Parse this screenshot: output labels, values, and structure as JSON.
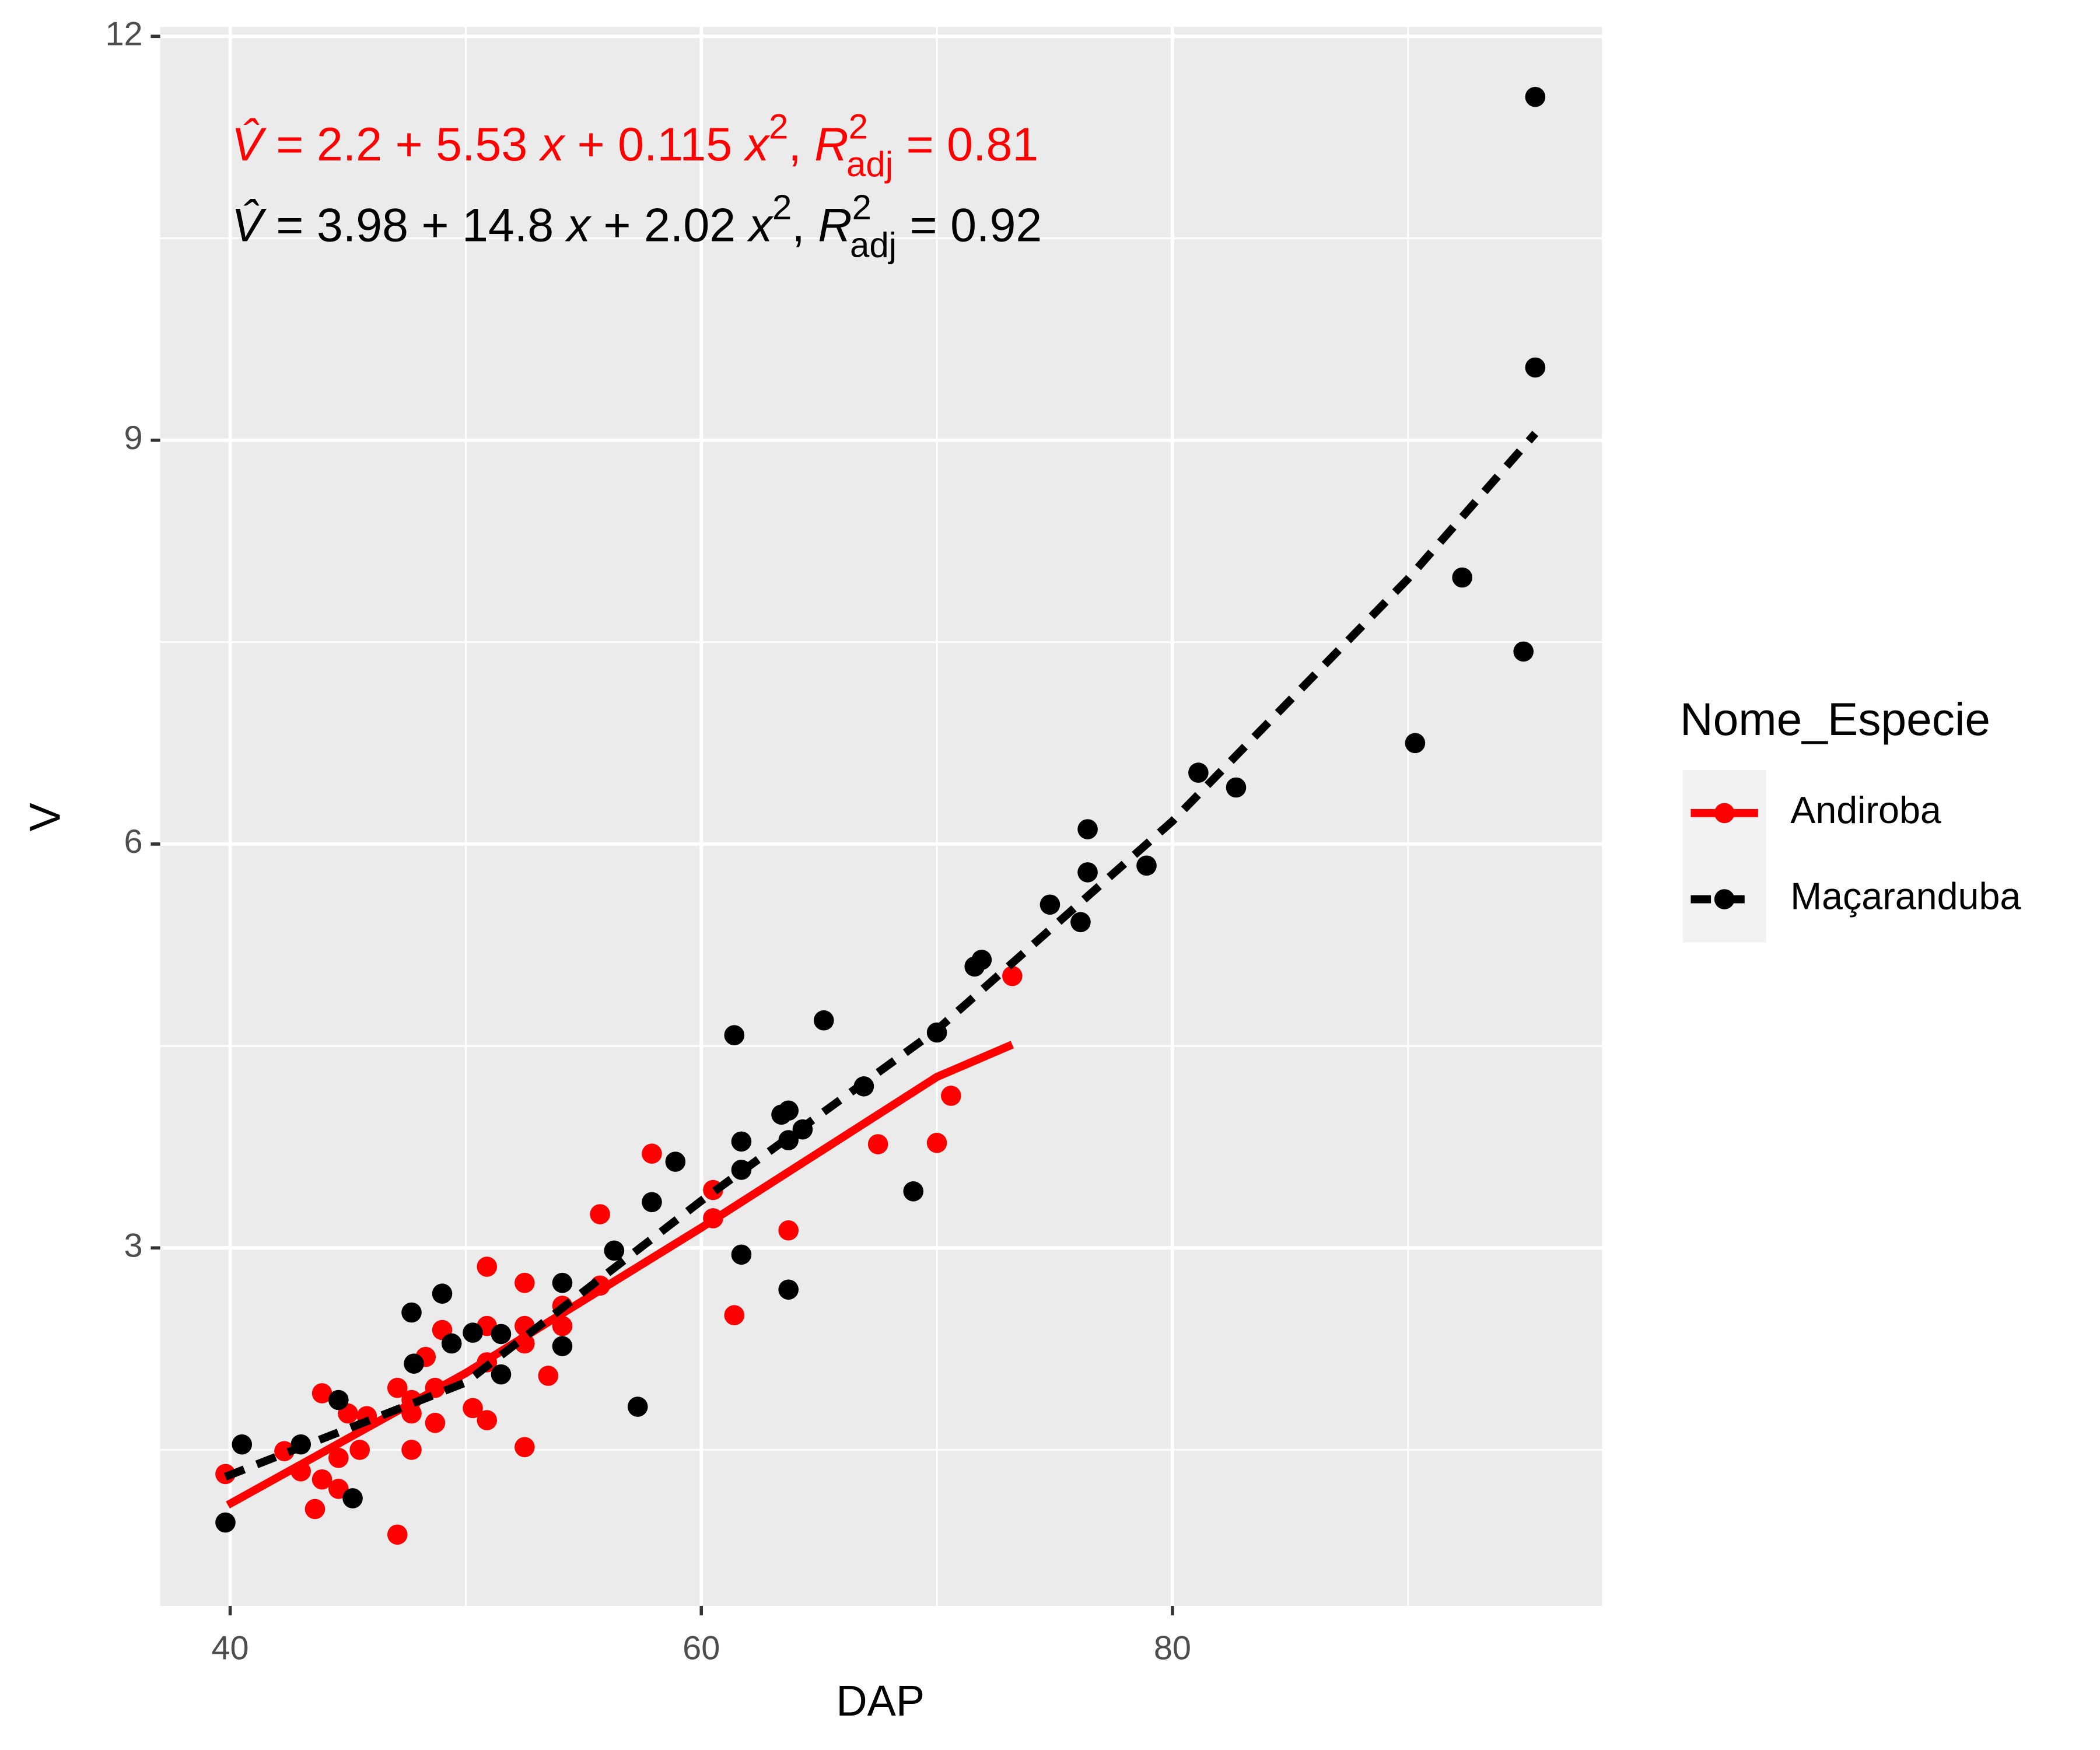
{
  "chart_data": {
    "type": "scatter",
    "xlabel": "DAP",
    "ylabel": "V",
    "xlim": [
      37.03,
      98.23
    ],
    "ylim": [
      0.34,
      12.07
    ],
    "xticks": [
      40,
      60,
      80
    ],
    "yticks": [
      3,
      6,
      9,
      12
    ],
    "x_minor_grid": [
      50,
      70,
      90
    ],
    "y_minor_grid": [
      1.5,
      4.5,
      7.5,
      10.5
    ],
    "grid": true,
    "legend": {
      "title": "Nome_Especie",
      "position": "right"
    },
    "series": [
      {
        "name": "Andiroba",
        "color": "#ff0000",
        "line_style": "solid",
        "x": [
          39.8,
          42.3,
          43.0,
          43.6,
          43.9,
          43.9,
          44.6,
          44.6,
          45.0,
          45.5,
          45.8,
          47.1,
          47.1,
          47.7,
          47.7,
          47.7,
          48.3,
          48.7,
          48.7,
          49.0,
          50.3,
          50.9,
          50.9,
          50.9,
          50.9,
          52.5,
          52.5,
          52.5,
          52.5,
          53.5,
          54.1,
          54.1,
          55.7,
          55.7,
          57.9,
          60.5,
          60.5,
          61.4,
          63.7,
          67.5,
          70.0,
          70.6,
          73.2
        ],
        "values": [
          1.32,
          1.49,
          1.34,
          1.06,
          1.92,
          1.28,
          1.21,
          1.44,
          1.77,
          1.5,
          1.75,
          0.87,
          1.96,
          1.5,
          1.77,
          1.87,
          2.19,
          1.7,
          1.96,
          2.39,
          1.81,
          2.86,
          2.42,
          2.15,
          1.72,
          2.74,
          2.42,
          2.29,
          1.52,
          2.05,
          2.42,
          2.57,
          3.25,
          2.72,
          3.7,
          3.43,
          3.22,
          2.5,
          3.13,
          3.77,
          3.78,
          4.13,
          5.02
        ],
        "fit_x": [
          39.9,
          50,
          60,
          70,
          73.2
        ],
        "fit_values": [
          1.09,
          2.07,
          3.15,
          4.27,
          4.51
        ]
      },
      {
        "name": "Maçaranduba",
        "color": "#000000",
        "line_style": "dashed",
        "x": [
          39.8,
          40.5,
          43.0,
          44.6,
          45.2,
          47.7,
          47.8,
          49.0,
          49.4,
          50.3,
          51.5,
          51.5,
          54.1,
          54.1,
          56.3,
          57.3,
          57.9,
          58.9,
          61.4,
          61.7,
          61.7,
          61.7,
          63.4,
          63.7,
          63.7,
          63.7,
          64.3,
          65.2,
          66.9,
          69.0,
          70.0,
          71.6,
          71.9,
          74.8,
          76.1,
          76.4,
          76.4,
          78.9,
          81.1,
          82.7,
          90.3,
          92.3,
          94.9,
          95.4,
          95.4
        ],
        "values": [
          0.96,
          1.54,
          1.54,
          1.87,
          1.14,
          2.52,
          2.14,
          2.66,
          2.29,
          2.37,
          2.36,
          2.06,
          2.74,
          2.27,
          2.98,
          1.82,
          3.34,
          3.64,
          4.58,
          3.79,
          3.58,
          2.95,
          3.99,
          4.02,
          3.8,
          2.69,
          3.88,
          4.69,
          4.2,
          3.42,
          4.6,
          5.09,
          5.14,
          5.55,
          5.42,
          6.11,
          5.79,
          5.84,
          6.53,
          6.42,
          6.75,
          7.98,
          7.43,
          9.54,
          11.55
        ],
        "fit_x": [
          39.8,
          50,
          60,
          70,
          80,
          90,
          95.4
        ],
        "fit_values": [
          1.3,
          2.0,
          3.35,
          4.62,
          6.17,
          7.97,
          9.05
        ]
      }
    ],
    "annotations": [
      {
        "color": "#ff0000",
        "parts": [
          {
            "text": "V̂",
            "style": "italic"
          },
          {
            "text": " = 2.2 + 5.53 "
          },
          {
            "text": "x",
            "style": "italic"
          },
          {
            "text": " + 0.115 "
          },
          {
            "text": "x",
            "style": "italic"
          },
          {
            "text": "2",
            "style": "sup"
          },
          {
            "text": ", "
          },
          {
            "text": "R",
            "style": "italic"
          },
          {
            "text": "2",
            "style": "sup"
          },
          {
            "text": "adj",
            "style": "sub"
          },
          {
            "text": " = 0.81"
          }
        ]
      },
      {
        "color": "#000000",
        "parts": [
          {
            "text": "V̂",
            "style": "italic"
          },
          {
            "text": " = 3.98 + 14.8 "
          },
          {
            "text": "x",
            "style": "italic"
          },
          {
            "text": " + 2.02 "
          },
          {
            "text": "x",
            "style": "italic"
          },
          {
            "text": "2",
            "style": "sup"
          },
          {
            "text": ", "
          },
          {
            "text": "R",
            "style": "italic"
          },
          {
            "text": "2",
            "style": "sup"
          },
          {
            "text": "adj",
            "style": "sub"
          },
          {
            "text": " = 0.92"
          }
        ]
      }
    ]
  }
}
